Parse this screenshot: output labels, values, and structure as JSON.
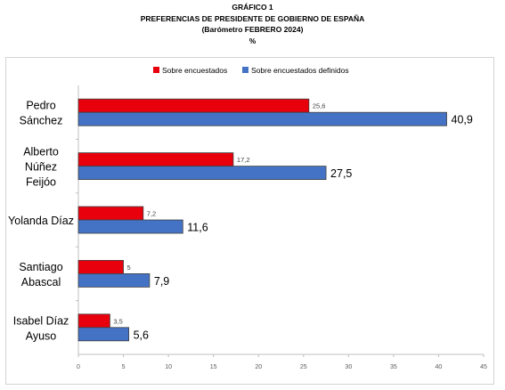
{
  "header": {
    "line1": "GRÁFICO 1",
    "line2": "PREFERENCIAS DE PRESIDENTE DE GOBIERNO DE ESPAÑA",
    "line3": "(Barómetro FEBRERO 2024)",
    "line4": "%"
  },
  "colors": {
    "series1": "#e8000d",
    "series2": "#4472c4",
    "axis": "#bfbfbf"
  },
  "chart_data": {
    "type": "bar",
    "orientation": "horizontal",
    "categories": [
      [
        "Pedro",
        "Sánchez"
      ],
      [
        "Alberto",
        "Núñez",
        "Feijóo"
      ],
      [
        "Yolanda Díaz"
      ],
      [
        "Santiago",
        "Abascal"
      ],
      [
        "Isabel Díaz",
        "Ayuso"
      ]
    ],
    "series": [
      {
        "name": "Sobre encuestados",
        "values": [
          25.6,
          17.2,
          7.2,
          5,
          3.5
        ],
        "labels": [
          "25,6",
          "17,2",
          "7,2",
          "5",
          "3,5"
        ]
      },
      {
        "name": "Sobre encuestados definidos",
        "values": [
          40.9,
          27.5,
          11.6,
          7.9,
          5.6
        ],
        "labels": [
          "40,9",
          "27,5",
          "11,6",
          "7,9",
          "5,6"
        ]
      }
    ],
    "xlim": [
      0,
      45
    ],
    "ticks": [
      0,
      5,
      10,
      15,
      20,
      25,
      30,
      35,
      40,
      45
    ],
    "legend_position": "top-center",
    "grid": false
  }
}
